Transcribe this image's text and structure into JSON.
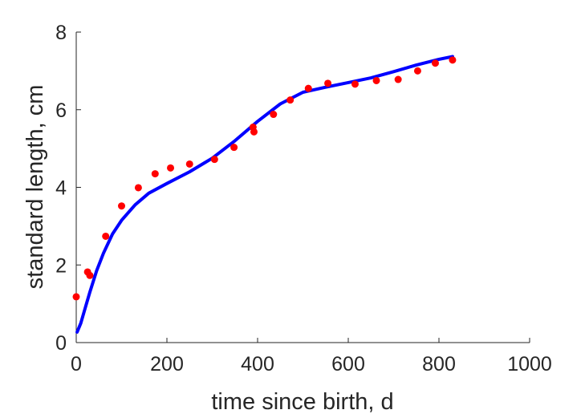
{
  "chart_data": {
    "type": "scatter",
    "title": "",
    "xlabel": "time since birth, d",
    "ylabel": "standard length, cm",
    "xlim": [
      0,
      1000
    ],
    "ylim": [
      0,
      8
    ],
    "xticks": [
      0,
      200,
      400,
      600,
      800,
      1000
    ],
    "yticks": [
      0,
      2,
      4,
      6,
      8
    ],
    "grid": false,
    "legend": "none",
    "series": [
      {
        "kind": "scatter",
        "color": "#ff0000",
        "points": [
          [
            0,
            1.18
          ],
          [
            25,
            1.82
          ],
          [
            30,
            1.73
          ],
          [
            65,
            2.74
          ],
          [
            100,
            3.52
          ],
          [
            137,
            3.99
          ],
          [
            174,
            4.35
          ],
          [
            208,
            4.5
          ],
          [
            250,
            4.6
          ],
          [
            305,
            4.72
          ],
          [
            348,
            5.03
          ],
          [
            390,
            5.55
          ],
          [
            392,
            5.43
          ],
          [
            435,
            5.88
          ],
          [
            472,
            6.25
          ],
          [
            512,
            6.55
          ],
          [
            555,
            6.68
          ],
          [
            615,
            6.66
          ],
          [
            662,
            6.75
          ],
          [
            710,
            6.78
          ],
          [
            753,
            7.0
          ],
          [
            792,
            7.2
          ],
          [
            830,
            7.28
          ]
        ]
      },
      {
        "kind": "line",
        "color": "#0000ff",
        "points": [
          [
            2,
            0.27
          ],
          [
            10,
            0.5
          ],
          [
            20,
            0.9
          ],
          [
            30,
            1.3
          ],
          [
            45,
            1.85
          ],
          [
            60,
            2.3
          ],
          [
            80,
            2.8
          ],
          [
            100,
            3.15
          ],
          [
            130,
            3.55
          ],
          [
            160,
            3.85
          ],
          [
            200,
            4.1
          ],
          [
            250,
            4.4
          ],
          [
            300,
            4.75
          ],
          [
            350,
            5.2
          ],
          [
            400,
            5.7
          ],
          [
            450,
            6.15
          ],
          [
            500,
            6.45
          ],
          [
            550,
            6.58
          ],
          [
            600,
            6.7
          ],
          [
            650,
            6.82
          ],
          [
            700,
            6.98
          ],
          [
            750,
            7.15
          ],
          [
            800,
            7.3
          ],
          [
            830,
            7.37
          ]
        ]
      }
    ]
  }
}
